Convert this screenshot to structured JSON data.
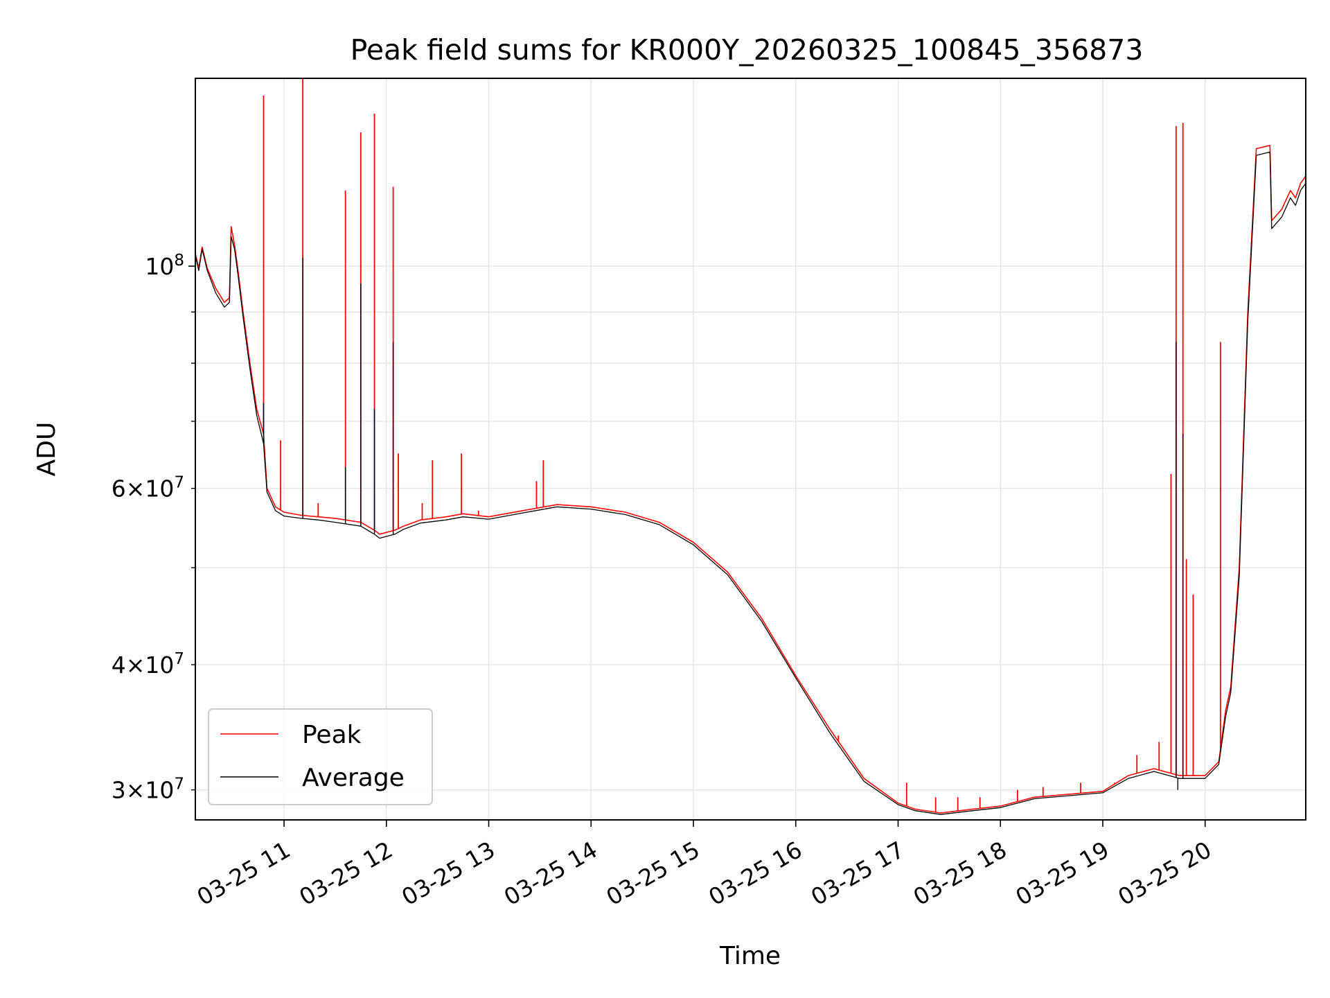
{
  "chart_data": {
    "type": "line",
    "title": "Peak field sums for KR000Y_20260325_100845_356873",
    "xlabel": "Time",
    "ylabel": "ADU",
    "yscale": "log",
    "ylim": [
      28000000,
      154000000
    ],
    "xlim": [
      "2026-03-25 10:08",
      "2026-03-25 20:59"
    ],
    "grid": true,
    "legend_position": "lower-left",
    "x_ticks": [
      {
        "value": "2026-03-25 11:00",
        "label": "03-25 11"
      },
      {
        "value": "2026-03-25 12:00",
        "label": "03-25 12"
      },
      {
        "value": "2026-03-25 13:00",
        "label": "03-25 13"
      },
      {
        "value": "2026-03-25 14:00",
        "label": "03-25 14"
      },
      {
        "value": "2026-03-25 15:00",
        "label": "03-25 15"
      },
      {
        "value": "2026-03-25 16:00",
        "label": "03-25 16"
      },
      {
        "value": "2026-03-25 17:00",
        "label": "03-25 17"
      },
      {
        "value": "2026-03-25 18:00",
        "label": "03-25 18"
      },
      {
        "value": "2026-03-25 19:00",
        "label": "03-25 19"
      },
      {
        "value": "2026-03-25 20:00",
        "label": "03-25 20"
      }
    ],
    "y_major_ticks": [
      {
        "value": 100000000,
        "mantissa": "",
        "base": "10",
        "exp": "8"
      }
    ],
    "y_minor_ticks": [
      {
        "value": 30000000,
        "mantissa": "3",
        "base": "10",
        "exp": "7"
      },
      {
        "value": 40000000,
        "mantissa": "4",
        "base": "10",
        "exp": "7"
      },
      {
        "value": 60000000,
        "mantissa": "6",
        "base": "10",
        "exp": "7"
      }
    ],
    "y_minor_unlabeled": [
      50000000,
      70000000,
      80000000,
      90000000
    ],
    "series": [
      {
        "name": "Peak",
        "color": "#ff0000",
        "points": [
          [
            "2026-03-25 10:08",
            103000000
          ],
          [
            "2026-03-25 10:10",
            99500000
          ],
          [
            "2026-03-25 10:12",
            104500000
          ],
          [
            "2026-03-25 10:15",
            99500000
          ],
          [
            "2026-03-25 10:20",
            95000000
          ],
          [
            "2026-03-25 10:25",
            92000000
          ],
          [
            "2026-03-25 10:28",
            93000000
          ],
          [
            "2026-03-25 10:29",
            109500000
          ],
          [
            "2026-03-25 10:31",
            105000000
          ],
          [
            "2026-03-25 10:33",
            99000000
          ],
          [
            "2026-03-25 10:36",
            90000000
          ],
          [
            "2026-03-25 10:40",
            80000000
          ],
          [
            "2026-03-25 10:44",
            72000000
          ],
          [
            "2026-03-25 10:48",
            68000000
          ],
          [
            "2026-03-25 10:50",
            60000000
          ],
          [
            "2026-03-25 10:55",
            57500000
          ],
          [
            "2026-03-25 11:00",
            56800000
          ],
          [
            "2026-03-25 11:10",
            56400000
          ],
          [
            "2026-03-25 11:20",
            56200000
          ],
          [
            "2026-03-25 11:30",
            56000000
          ],
          [
            "2026-03-25 11:45",
            55500000
          ],
          [
            "2026-03-25 11:53",
            54500000
          ],
          [
            "2026-03-25 11:56",
            54000000
          ],
          [
            "2026-03-25 12:05",
            54500000
          ],
          [
            "2026-03-25 12:10",
            55000000
          ],
          [
            "2026-03-25 12:20",
            55800000
          ],
          [
            "2026-03-25 12:35",
            56200000
          ],
          [
            "2026-03-25 12:45",
            56600000
          ],
          [
            "2026-03-25 13:00",
            56200000
          ],
          [
            "2026-03-25 13:20",
            57000000
          ],
          [
            "2026-03-25 13:40",
            57800000
          ],
          [
            "2026-03-25 14:00",
            57500000
          ],
          [
            "2026-03-25 14:20",
            56800000
          ],
          [
            "2026-03-25 14:40",
            55500000
          ],
          [
            "2026-03-25 15:00",
            53000000
          ],
          [
            "2026-03-25 15:20",
            49500000
          ],
          [
            "2026-03-25 15:40",
            44500000
          ],
          [
            "2026-03-25 16:00",
            39000000
          ],
          [
            "2026-03-25 16:20",
            34500000
          ],
          [
            "2026-03-25 16:40",
            30800000
          ],
          [
            "2026-03-25 17:00",
            29100000
          ],
          [
            "2026-03-25 17:10",
            28700000
          ],
          [
            "2026-03-25 17:25",
            28450000
          ],
          [
            "2026-03-25 17:40",
            28650000
          ],
          [
            "2026-03-25 18:00",
            28900000
          ],
          [
            "2026-03-25 18:20",
            29500000
          ],
          [
            "2026-03-25 18:40",
            29700000
          ],
          [
            "2026-03-25 19:00",
            29900000
          ],
          [
            "2026-03-25 19:15",
            31000000
          ],
          [
            "2026-03-25 19:30",
            31500000
          ],
          [
            "2026-03-25 19:45",
            31000000
          ],
          [
            "2026-03-25 20:00",
            31000000
          ],
          [
            "2026-03-25 20:08",
            32000000
          ],
          [
            "2026-03-25 20:12",
            36000000
          ],
          [
            "2026-03-25 20:15",
            38000000
          ],
          [
            "2026-03-25 20:20",
            50000000
          ],
          [
            "2026-03-25 20:25",
            90000000
          ],
          [
            "2026-03-25 20:30",
            131000000
          ],
          [
            "2026-03-25 20:38",
            132000000
          ],
          [
            "2026-03-25 20:39",
            111000000
          ],
          [
            "2026-03-25 20:45",
            114000000
          ],
          [
            "2026-03-25 20:50",
            119000000
          ],
          [
            "2026-03-25 20:53",
            117000000
          ],
          [
            "2026-03-25 20:56",
            121000000
          ],
          [
            "2026-03-25 20:59",
            123000000
          ]
        ],
        "spikes": [
          [
            "2026-03-25 10:48",
            148000000
          ],
          [
            "2026-03-25 10:58",
            67000000
          ],
          [
            "2026-03-25 11:11",
            154000000
          ],
          [
            "2026-03-25 11:20",
            58000000
          ],
          [
            "2026-03-25 11:36",
            119000000
          ],
          [
            "2026-03-25 11:45",
            136000000
          ],
          [
            "2026-03-25 11:53",
            142000000
          ],
          [
            "2026-03-25 12:04",
            120000000
          ],
          [
            "2026-03-25 12:07",
            65000000
          ],
          [
            "2026-03-25 12:21",
            58000000
          ],
          [
            "2026-03-25 12:27",
            64000000
          ],
          [
            "2026-03-25 12:44",
            65000000
          ],
          [
            "2026-03-25 12:54",
            57000000
          ],
          [
            "2026-03-25 13:28",
            61000000
          ],
          [
            "2026-03-25 13:32",
            64000000
          ],
          [
            "2026-03-25 16:25",
            34000000
          ],
          [
            "2026-03-25 17:05",
            30500000
          ],
          [
            "2026-03-25 17:22",
            29500000
          ],
          [
            "2026-03-25 17:35",
            29500000
          ],
          [
            "2026-03-25 17:48",
            29500000
          ],
          [
            "2026-03-25 18:10",
            30000000
          ],
          [
            "2026-03-25 18:25",
            30200000
          ],
          [
            "2026-03-25 18:47",
            30500000
          ],
          [
            "2026-03-25 19:07",
            30500000
          ],
          [
            "2026-03-25 19:20",
            32500000
          ],
          [
            "2026-03-25 19:33",
            33500000
          ],
          [
            "2026-03-25 19:40",
            62000000
          ],
          [
            "2026-03-25 19:43",
            138000000
          ],
          [
            "2026-03-25 19:47",
            139000000
          ],
          [
            "2026-03-25 19:49",
            51000000
          ],
          [
            "2026-03-25 19:53",
            47000000
          ],
          [
            "2026-03-25 20:09",
            84000000
          ]
        ]
      },
      {
        "name": "Average",
        "color": "#000000",
        "points": [
          [
            "2026-03-25 10:08",
            102500000
          ],
          [
            "2026-03-25 10:10",
            99000000
          ],
          [
            "2026-03-25 10:12",
            104000000
          ],
          [
            "2026-03-25 10:15",
            99000000
          ],
          [
            "2026-03-25 10:20",
            94000000
          ],
          [
            "2026-03-25 10:25",
            91000000
          ],
          [
            "2026-03-25 10:28",
            92000000
          ],
          [
            "2026-03-25 10:29",
            107000000
          ],
          [
            "2026-03-25 10:31",
            104000000
          ],
          [
            "2026-03-25 10:33",
            98000000
          ],
          [
            "2026-03-25 10:36",
            89000000
          ],
          [
            "2026-03-25 10:40",
            79000000
          ],
          [
            "2026-03-25 10:44",
            71000000
          ],
          [
            "2026-03-25 10:48",
            66500000
          ],
          [
            "2026-03-25 10:50",
            59500000
          ],
          [
            "2026-03-25 10:55",
            57000000
          ],
          [
            "2026-03-25 11:00",
            56300000
          ],
          [
            "2026-03-25 11:10",
            56000000
          ],
          [
            "2026-03-25 11:20",
            55800000
          ],
          [
            "2026-03-25 11:30",
            55500000
          ],
          [
            "2026-03-25 11:45",
            55000000
          ],
          [
            "2026-03-25 11:53",
            54000000
          ],
          [
            "2026-03-25 11:56",
            53500000
          ],
          [
            "2026-03-25 12:05",
            54000000
          ],
          [
            "2026-03-25 12:10",
            54600000
          ],
          [
            "2026-03-25 12:20",
            55400000
          ],
          [
            "2026-03-25 12:35",
            55800000
          ],
          [
            "2026-03-25 12:45",
            56200000
          ],
          [
            "2026-03-25 13:00",
            55900000
          ],
          [
            "2026-03-25 13:20",
            56700000
          ],
          [
            "2026-03-25 13:40",
            57500000
          ],
          [
            "2026-03-25 14:00",
            57200000
          ],
          [
            "2026-03-25 14:20",
            56500000
          ],
          [
            "2026-03-25 14:40",
            55200000
          ],
          [
            "2026-03-25 15:00",
            52700000
          ],
          [
            "2026-03-25 15:20",
            49200000
          ],
          [
            "2026-03-25 15:40",
            44200000
          ],
          [
            "2026-03-25 16:00",
            38800000
          ],
          [
            "2026-03-25 16:20",
            34200000
          ],
          [
            "2026-03-25 16:40",
            30600000
          ],
          [
            "2026-03-25 17:00",
            29000000
          ],
          [
            "2026-03-25 17:10",
            28600000
          ],
          [
            "2026-03-25 17:25",
            28350000
          ],
          [
            "2026-03-25 17:40",
            28550000
          ],
          [
            "2026-03-25 18:00",
            28800000
          ],
          [
            "2026-03-25 18:20",
            29400000
          ],
          [
            "2026-03-25 18:40",
            29600000
          ],
          [
            "2026-03-25 19:00",
            29800000
          ],
          [
            "2026-03-25 19:15",
            30800000
          ],
          [
            "2026-03-25 19:30",
            31300000
          ],
          [
            "2026-03-25 19:45",
            30800000
          ],
          [
            "2026-03-25 20:00",
            30800000
          ],
          [
            "2026-03-25 20:08",
            31800000
          ],
          [
            "2026-03-25 20:12",
            35500000
          ],
          [
            "2026-03-25 20:15",
            37500000
          ],
          [
            "2026-03-25 20:20",
            49000000
          ],
          [
            "2026-03-25 20:25",
            88000000
          ],
          [
            "2026-03-25 20:30",
            129000000
          ],
          [
            "2026-03-25 20:38",
            130000000
          ],
          [
            "2026-03-25 20:39",
            109000000
          ],
          [
            "2026-03-25 20:45",
            112000000
          ],
          [
            "2026-03-25 20:50",
            117000000
          ],
          [
            "2026-03-25 20:53",
            115000000
          ],
          [
            "2026-03-25 20:56",
            119000000
          ],
          [
            "2026-03-25 20:59",
            121000000
          ]
        ],
        "spikes": [
          [
            "2026-03-25 10:48",
            73000000
          ],
          [
            "2026-03-25 11:11",
            102000000
          ],
          [
            "2026-03-25 11:36",
            63000000
          ],
          [
            "2026-03-25 11:45",
            96000000
          ],
          [
            "2026-03-25 11:53",
            72000000
          ],
          [
            "2026-03-25 12:04",
            84000000
          ],
          [
            "2026-03-25 19:43",
            84000000
          ],
          [
            "2026-03-25 19:47",
            68000000
          ],
          [
            "2026-03-25 19:44",
            30000000
          ]
        ]
      }
    ]
  }
}
